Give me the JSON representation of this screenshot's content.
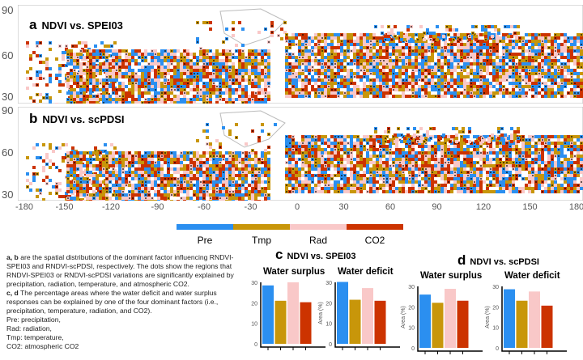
{
  "panels": [
    {
      "letter": "a",
      "title": "NDVI vs. SPEI03"
    },
    {
      "letter": "b",
      "title": "NDVI vs. scPDSI"
    }
  ],
  "map_yticks": [
    "90",
    "60",
    "30"
  ],
  "map_xticks": [
    "-180",
    "-150",
    "-120",
    "-90",
    "-60",
    "-30",
    "0",
    "30",
    "60",
    "90",
    "120",
    "150",
    "180"
  ],
  "legend": [
    {
      "label": "Pre",
      "color": "#2b8ff0"
    },
    {
      "label": "Tmp",
      "color": "#c8960a"
    },
    {
      "label": "Rad",
      "color": "#f9c8c8"
    },
    {
      "label": "CO2",
      "color": "#cc3300"
    }
  ],
  "caption": {
    "ab_lead": "a, b",
    "ab_text": " are the spatial distributions of the dominant factor influencing RNDVI-SPEI03 and RNDVI-scPDSI, respectively. The dots show the regions that RNDVI-SPEI03 or RNDVI-scPDSI variations are significantly explained by precipitation, radiation, temperature, and atmospheric CO2.",
    "cd_lead": "c, d",
    "cd_text": " The percentage areas where the water deficit and water surplus responses can be explained by one of the four dominant factors (i.e., precipitation, temperature, radiation, and CO2).",
    "defs": [
      "Pre: precipitation,",
      "Rad: radiation,",
      "Tmp: temperature,",
      "CO2: atmospheric CO2"
    ]
  },
  "chart_data": [
    {
      "type": "bar",
      "group": "c",
      "group_title": "NDVI vs. SPEI03",
      "title": "Water surplus",
      "categories": [
        "Pre",
        "Tmp",
        "Rad",
        "CO2"
      ],
      "values": [
        28.5,
        21,
        30,
        20.3
      ],
      "ylabel": "Area (%)",
      "ylim": [
        0,
        30
      ],
      "yticks": [
        "0",
        "10",
        "20",
        "30"
      ]
    },
    {
      "type": "bar",
      "group": "c",
      "title": "Water deficit",
      "categories": [
        "Pre",
        "Tmp",
        "Rad",
        "CO2"
      ],
      "values": [
        30.2,
        21.5,
        27.2,
        21
      ],
      "ylabel": "Area (%)",
      "ylim": [
        0,
        30
      ],
      "yticks": [
        "0",
        "10",
        "20",
        "30"
      ]
    },
    {
      "type": "bar",
      "group": "d",
      "group_title": "NDVI vs. scPDSI",
      "title": "Water surplus",
      "categories": [
        "Pre",
        "Tmp",
        "Rad",
        "CO2"
      ],
      "values": [
        26,
        22,
        28.8,
        23
      ],
      "ylabel": "Area (%)",
      "ylim": [
        0,
        30
      ],
      "yticks": [
        "0",
        "10",
        "20",
        "30"
      ]
    },
    {
      "type": "bar",
      "group": "d",
      "title": "Water deficit",
      "categories": [
        "Pre",
        "Tmp",
        "Rad",
        "CO2"
      ],
      "values": [
        28.6,
        23,
        27.5,
        20.6
      ],
      "ylabel": "Area (%)",
      "ylim": [
        0,
        30
      ],
      "yticks": [
        "0",
        "10",
        "20",
        "30"
      ]
    }
  ]
}
